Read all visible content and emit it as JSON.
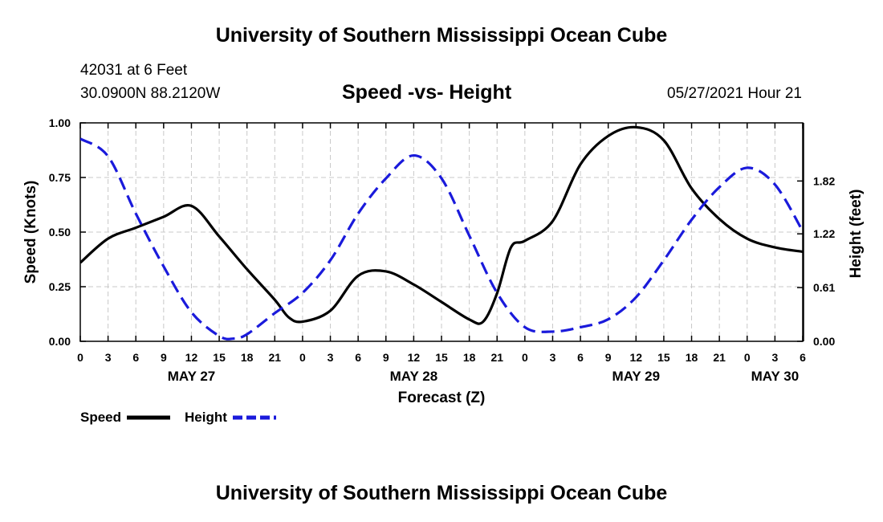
{
  "header": {
    "title": "University of Southern Mississippi Ocean Cube",
    "station": "42031 at 6 Feet",
    "coords": "30.0900N  88.2120W",
    "chart_title": "Speed -vs- Height",
    "datetime": "05/27/2021 Hour 21"
  },
  "footer": {
    "title": "University of Southern Mississippi Ocean Cube"
  },
  "colors": {
    "speed": "#000000",
    "height": "#1a1adb",
    "grid": "#c8c8c8"
  },
  "chart_data": {
    "type": "line",
    "title": "Speed -vs- Height",
    "xlabel": "Forecast (Z)",
    "ylabel": "Speed (Knots)",
    "y2label": "Height (feet)",
    "xlim": [
      0,
      78
    ],
    "ylim": [
      0,
      1
    ],
    "y2lim": [
      0.0,
      2.48
    ],
    "x_ticks": [
      0,
      3,
      6,
      9,
      12,
      15,
      18,
      21,
      24,
      27,
      30,
      33,
      36,
      39,
      42,
      45,
      48,
      51,
      54,
      57,
      60,
      63,
      66,
      69,
      72,
      75,
      78
    ],
    "x_tick_labels": [
      "0",
      "3",
      "6",
      "9",
      "12",
      "15",
      "18",
      "21",
      "0",
      "3",
      "6",
      "9",
      "12",
      "15",
      "18",
      "21",
      "0",
      "3",
      "6",
      "9",
      "12",
      "15",
      "18",
      "21",
      "0",
      "3",
      "6"
    ],
    "y_ticks": [
      0,
      0.25,
      0.5,
      0.75,
      1.0
    ],
    "y_tick_labels": [
      "0.00",
      "0.25",
      "0.50",
      "0.75",
      "1.00"
    ],
    "y2_ticks": [
      0.0,
      0.61,
      1.22,
      1.82
    ],
    "y2_tick_labels": [
      "0.00",
      "0.61",
      "1.22",
      "1.82"
    ],
    "date_labels": [
      {
        "x": 12,
        "label": "MAY 27"
      },
      {
        "x": 36,
        "label": "MAY 28"
      },
      {
        "x": 60,
        "label": "MAY 29"
      },
      {
        "x": 75,
        "label": "MAY 30"
      }
    ],
    "grid": true,
    "legend_position": "bottom-left",
    "series": [
      {
        "name": "Speed",
        "axis": "left",
        "style": "solid",
        "x": [
          0,
          3,
          6,
          9,
          12,
          15,
          18,
          21,
          22.5,
          24,
          27,
          30,
          33,
          36,
          39,
          42,
          43.5,
          45,
          46.5,
          48,
          51,
          54,
          57,
          60,
          63,
          66,
          69,
          72,
          75,
          78
        ],
        "values": [
          0.36,
          0.47,
          0.52,
          0.57,
          0.62,
          0.48,
          0.33,
          0.19,
          0.11,
          0.09,
          0.14,
          0.3,
          0.32,
          0.26,
          0.18,
          0.1,
          0.09,
          0.22,
          0.43,
          0.46,
          0.55,
          0.81,
          0.94,
          0.98,
          0.92,
          0.7,
          0.56,
          0.47,
          0.43,
          0.41
        ]
      },
      {
        "name": "Height",
        "axis": "right",
        "style": "dashed",
        "x": [
          0,
          3,
          6,
          9,
          12,
          15,
          16.5,
          18,
          21,
          24,
          27,
          30,
          33,
          36,
          39,
          42,
          45,
          48,
          51,
          54,
          57,
          60,
          63,
          66,
          69,
          72,
          75,
          78
        ],
        "values": [
          2.3,
          2.1,
          1.45,
          0.85,
          0.33,
          0.06,
          0.03,
          0.08,
          0.32,
          0.55,
          0.92,
          1.45,
          1.85,
          2.11,
          1.85,
          1.2,
          0.55,
          0.16,
          0.11,
          0.16,
          0.25,
          0.5,
          0.92,
          1.38,
          1.75,
          1.97,
          1.78,
          1.25
        ]
      }
    ]
  }
}
